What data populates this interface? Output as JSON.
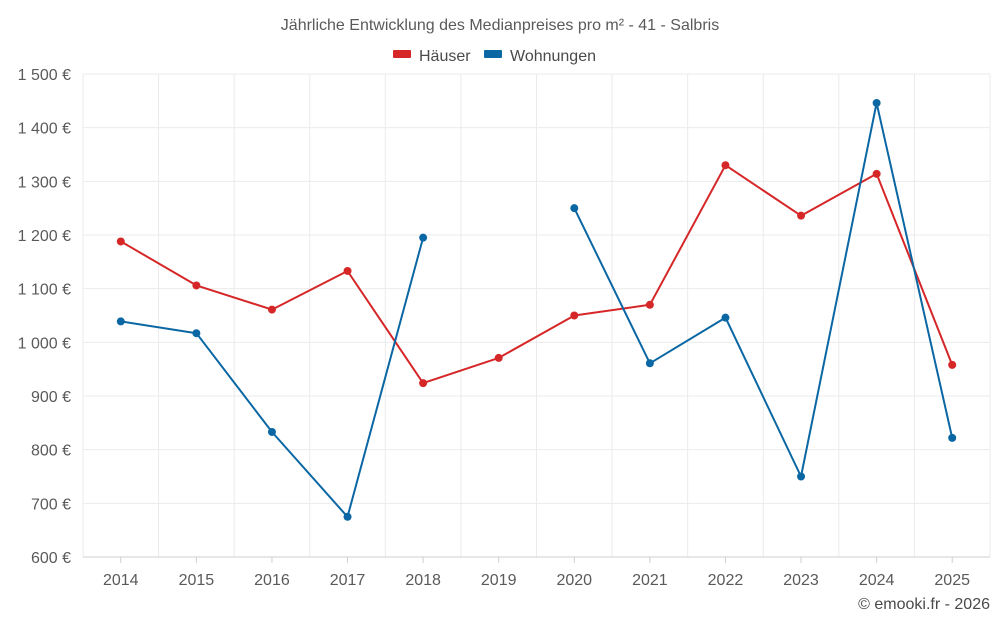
{
  "chart_data": {
    "type": "line",
    "title": "Jährliche Entwicklung des Medianpreises pro m² - 41 - Salbris",
    "categories": [
      "2014",
      "2015",
      "2016",
      "2017",
      "2018",
      "2019",
      "2020",
      "2021",
      "2022",
      "2023",
      "2024",
      "2025"
    ],
    "series": [
      {
        "name": "Häuser",
        "color": "#d62728",
        "values": [
          1188,
          1106,
          1061,
          1133,
          924,
          971,
          1050,
          1070,
          1330,
          1236,
          1314,
          958
        ]
      },
      {
        "name": "Wohnungen",
        "color": "#0a67a3",
        "values": [
          1039,
          1017,
          833,
          675,
          1195,
          null,
          1250,
          961,
          1046,
          750,
          1446,
          822
        ]
      }
    ],
    "ylim": [
      600,
      1500
    ],
    "yticks": [
      600,
      700,
      800,
      900,
      1000,
      1100,
      1200,
      1300,
      1400,
      1500
    ],
    "ytick_labels": [
      "600 €",
      "700 €",
      "800 €",
      "900 €",
      "1 000 €",
      "1 100 €",
      "1 200 €",
      "1 300 €",
      "1 400 €",
      "1 500 €"
    ],
    "xlabel": "",
    "ylabel": "",
    "grid": true,
    "legend_position": "top-center",
    "credit": "© emooki.fr - 2026"
  }
}
